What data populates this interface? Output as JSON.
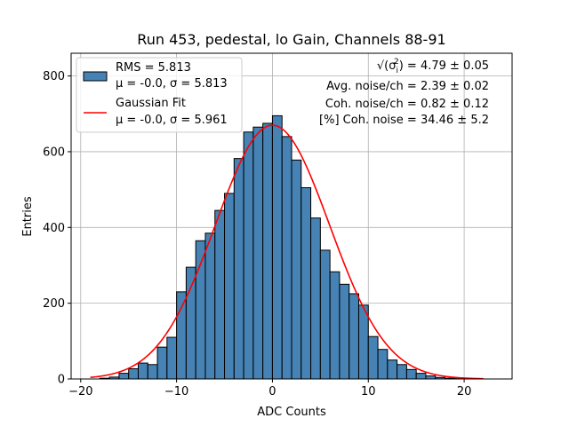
{
  "chart_data": {
    "type": "bar",
    "title": "Run 453, pedestal, lo Gain, Channels 88-91",
    "xlabel": "ADC Counts",
    "ylabel": "Entries",
    "xlim": [
      -21,
      25
    ],
    "ylim": [
      0,
      860
    ],
    "xticks": [
      -20,
      -10,
      0,
      10,
      20
    ],
    "xtick_labels": [
      "−20",
      "−10",
      "0",
      "10",
      "20"
    ],
    "yticks": [
      0,
      200,
      400,
      600,
      800
    ],
    "ytick_labels": [
      "0",
      "200",
      "400",
      "600",
      "800"
    ],
    "grid": true,
    "bin_width": 1,
    "bin_starts": [
      -18,
      -17,
      -16,
      -15,
      -14,
      -13,
      -12,
      -11,
      -10,
      -9,
      -8,
      -7,
      -6,
      -5,
      -4,
      -3,
      -2,
      -1,
      0,
      1,
      2,
      3,
      4,
      5,
      6,
      7,
      8,
      9,
      10,
      11,
      12,
      13,
      14,
      15,
      16,
      17,
      18,
      19,
      20,
      21
    ],
    "values": [
      2,
      5,
      15,
      27,
      42,
      38,
      84,
      110,
      230,
      295,
      365,
      385,
      445,
      490,
      582,
      652,
      665,
      675,
      695,
      640,
      578,
      505,
      425,
      340,
      283,
      250,
      225,
      195,
      112,
      78,
      50,
      38,
      25,
      15,
      8,
      4,
      2,
      1,
      0,
      0
    ],
    "bar_color": "#4682b4",
    "series": [
      {
        "name": "Gaussian Fit",
        "type": "line",
        "color": "#ff0000",
        "x_range": [
          -19,
          22
        ],
        "mu": 0.0,
        "sigma": 5.961,
        "amplitude": 670
      }
    ],
    "legend": {
      "position": "top-left",
      "entries": [
        {
          "line1": "RMS = 5.813",
          "line2": "μ = -0.0, σ = 5.813"
        },
        {
          "line1": "Gaussian Fit",
          "line2": "μ = -0.0, σ = 5.961"
        }
      ]
    },
    "annotations": [
      {
        "prefix": "√(σ",
        "sub": "i",
        "sup": "2",
        "text": ") = 4.79 ± 0.05"
      },
      {
        "text": "Avg. noise/ch = 2.39 ± 0.02"
      },
      {
        "text": "Coh. noise/ch = 0.82 ± 0.12"
      },
      {
        "text": "[%] Coh. noise = 34.46 ± 5.2"
      }
    ]
  }
}
